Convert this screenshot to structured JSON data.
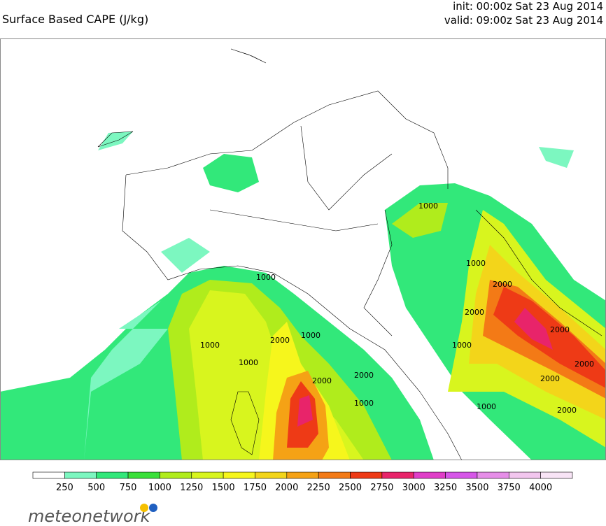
{
  "header": {
    "title": "Surface Based CAPE (J/kg)",
    "init": "init: 00:00z Sat 23 Aug 2014",
    "valid": "valid: 09:00z Sat 23 Aug 2014"
  },
  "colorbar": {
    "ticks": [
      250,
      500,
      750,
      1000,
      1250,
      1500,
      1750,
      2000,
      2250,
      2500,
      2750,
      3000,
      3250,
      3500,
      3750,
      4000
    ],
    "colors": [
      "#ffffff",
      "#7cf7c0",
      "#32e87a",
      "#3ae03a",
      "#b0ec1c",
      "#d8f51e",
      "#f6f61c",
      "#f3d51a",
      "#f5a215",
      "#f37a16",
      "#ee3a16",
      "#e8246a",
      "#e03ec8",
      "#d656e8",
      "#e68ee8",
      "#f2c6ee",
      "#f8e4f6"
    ]
  },
  "contour_labels": [
    1000,
    1000,
    1000,
    1000,
    1000,
    2000,
    2000,
    1000,
    2000,
    1000,
    1000,
    2000,
    2000,
    2000,
    2000,
    2000,
    2000,
    1000
  ],
  "logo": {
    "part1": "meteo",
    "part2": "network"
  }
}
